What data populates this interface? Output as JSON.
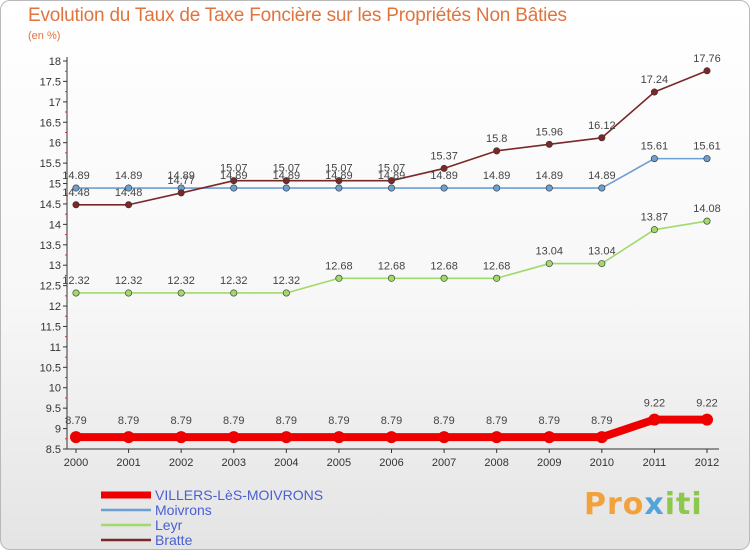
{
  "chart_data": {
    "type": "line",
    "title": "Evolution du Taux de Taxe Foncière sur les Propriétés Non Bâties",
    "ylabel": "(en %)",
    "xlabel": "",
    "ylim": [
      8.5,
      18
    ],
    "yticks": [
      8.5,
      9,
      9.5,
      10,
      10.5,
      11,
      11.5,
      12,
      12.5,
      13,
      13.5,
      14,
      14.5,
      15,
      15.5,
      16,
      16.5,
      17,
      17.5,
      18
    ],
    "categories": [
      "2000",
      "2001",
      "2002",
      "2003",
      "2004",
      "2005",
      "2006",
      "2007",
      "2008",
      "2009",
      "2010",
      "2011",
      "2012"
    ],
    "series": [
      {
        "name": "VILLERS-LèS-MOIVRONS",
        "color": "#ee0000",
        "values": [
          8.79,
          8.79,
          8.79,
          8.79,
          8.79,
          8.79,
          8.79,
          8.79,
          8.79,
          8.79,
          8.79,
          9.22,
          9.22
        ],
        "labels": [
          "8.79",
          "8.79",
          "8.79",
          "8.79",
          "8.79",
          "8.79",
          "8.79",
          "8.79",
          "8.79",
          "8.79",
          "8.79",
          "9.22",
          "9.22"
        ]
      },
      {
        "name": "Moivrons",
        "color": "#6d9fd0",
        "values": [
          14.89,
          14.89,
          14.89,
          14.89,
          14.89,
          14.89,
          14.89,
          14.89,
          14.89,
          14.89,
          14.89,
          15.61,
          15.61
        ],
        "labels": [
          "14.89",
          "14.89",
          "14.89",
          "14.89",
          "14.89",
          "14.89",
          "14.89",
          "14.89",
          "14.89",
          "14.89",
          "14.89",
          "15.61",
          "15.61"
        ]
      },
      {
        "name": "Leyr",
        "color": "#9fda6a",
        "values": [
          12.32,
          12.32,
          12.32,
          12.32,
          12.32,
          12.68,
          12.68,
          12.68,
          12.68,
          13.04,
          13.04,
          13.87,
          14.08
        ],
        "labels": [
          "12.32",
          "12.32",
          "12.32",
          "12.32",
          "12.32",
          "12.68",
          "12.68",
          "12.68",
          "12.68",
          "13.04",
          "13.04",
          "13.87",
          "14.08"
        ]
      },
      {
        "name": "Bratte",
        "color": "#7a2828",
        "values": [
          14.48,
          14.48,
          14.77,
          15.07,
          15.07,
          15.07,
          15.07,
          15.37,
          15.8,
          15.96,
          16.12,
          17.24,
          17.76
        ],
        "labels": [
          "14.48",
          "14.48",
          "14.77",
          "15.07",
          "15.07",
          "15.07",
          "15.07",
          "15.37",
          "15.8",
          "15.96",
          "16.12",
          "17.24",
          "17.76"
        ]
      }
    ],
    "legend_position": "bottom-left",
    "grid": false
  },
  "logo": {
    "p1": "Pro",
    "p2": "x",
    "p3": "iti"
  }
}
